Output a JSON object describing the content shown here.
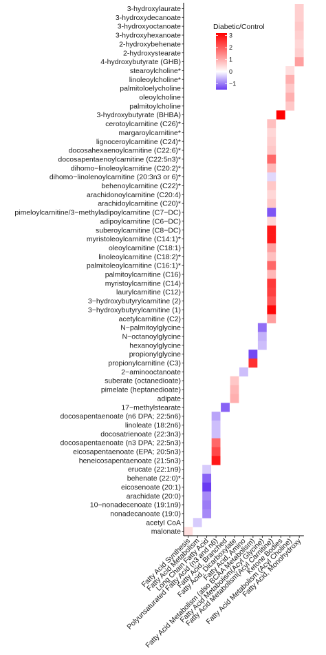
{
  "chart_data": {
    "type": "heatmap",
    "title": "",
    "xlabel": "",
    "ylabel": "",
    "legend": {
      "title": "Diabetic/Control",
      "placement": "top-right",
      "ticks": [
        3,
        2,
        1,
        0,
        -1
      ],
      "range": [
        -1.5,
        3.2
      ]
    },
    "columns": [
      "Fatty Acid Synthesis",
      "Fatty Acid Metabolism",
      "Long Chain Fatty Acid",
      "Polyunsaturated Fatty Acid (n3 and n6)",
      "Fatty Acid, Branched",
      "Fatty Acid, Dicarboxylate",
      "Fatty Acid, Amino",
      "Fatty Acid Metabolism (also BCAA Metabolism)",
      "Fatty Acid Metabolism(Acyl Glycine)",
      "Fatty Acid Metabolism(Acyl Carnitine)",
      "Ketone Bodies",
      "Fatty Acid Metabolism (Acyl Choline)",
      "Fatty Acid, Monohydroxy"
    ],
    "rows": [
      {
        "name": "3-hydroxylaurate",
        "col": 12,
        "value": 0.6
      },
      {
        "name": "3-hydroxydecanoate",
        "col": 12,
        "value": 0.6
      },
      {
        "name": "3-hydroxyoctanoate",
        "col": 12,
        "value": 0.7
      },
      {
        "name": "3-hydroxyhexanoate",
        "col": 12,
        "value": 0.6
      },
      {
        "name": "2-hydroxybehenate",
        "col": 12,
        "value": 0.5
      },
      {
        "name": "2-hydroxystearate",
        "col": 12,
        "value": 0.6
      },
      {
        "name": "4-hydroxybutyrate (GHB)",
        "col": 12,
        "value": 1.2
      },
      {
        "name": "stearoylcholine*",
        "col": 11,
        "value": 0.4
      },
      {
        "name": "linoleoylcholine*",
        "col": 11,
        "value": 1.0
      },
      {
        "name": "palmitoloelycholine",
        "col": 11,
        "value": 0.7
      },
      {
        "name": "oleoylcholine",
        "col": 11,
        "value": 1.0
      },
      {
        "name": "palmitoylcholine",
        "col": 11,
        "value": 0.7
      },
      {
        "name": "3-hydroxybutyrate (BHBA)",
        "col": 10,
        "value": 3.2
      },
      {
        "name": "cerotoylcarnitine (C26)*",
        "col": 9,
        "value": 0.8
      },
      {
        "name": "margaroylcarnitine*",
        "col": 9,
        "value": 0.5
      },
      {
        "name": "lignoceroylcarnitine (C24)*",
        "col": 9,
        "value": 0.6
      },
      {
        "name": "docosahexaenoylcarnitine (C22:6)*",
        "col": 9,
        "value": 0.7
      },
      {
        "name": "docosapentaenoylcarnitine (C22:5n3)*",
        "col": 9,
        "value": 1.9
      },
      {
        "name": "dihomo−linoleoylcarnitine (C20:2)*",
        "col": 9,
        "value": 0.9
      },
      {
        "name": "dihomo−linolenoylcarnitine (20:3n3 or 6)*",
        "col": 9,
        "value": -0.3
      },
      {
        "name": "behenoylcarnitine (C22)*",
        "col": 9,
        "value": 0.7
      },
      {
        "name": "arachidonoylcarnitine (C20:4)",
        "col": 9,
        "value": 0.5
      },
      {
        "name": "arachidoylcarnitine (C20)*",
        "col": 9,
        "value": 0.7
      },
      {
        "name": "pimeloylcarnitine/3−methyladipoylcarnitine (C7−DC)",
        "col": 9,
        "value": -1.3
      },
      {
        "name": "adipoylcarnitine (C6−DC)",
        "col": 9,
        "value": 0.5
      },
      {
        "name": "suberoylcarnitine (C8−DC)",
        "col": 9,
        "value": 2.9
      },
      {
        "name": "myristoleoylcarnitine (C14:1)*",
        "col": 9,
        "value": 2.9
      },
      {
        "name": "oleoylcarnitine (C18:1)",
        "col": 9,
        "value": 1.2
      },
      {
        "name": "linoleoylcarnitine (C18:2)*",
        "col": 9,
        "value": 0.8
      },
      {
        "name": "palmitoleoylcarnitine (C16:1)*",
        "col": 9,
        "value": 1.9
      },
      {
        "name": "palmitoylcarnitine (C16)",
        "col": 9,
        "value": 0.9
      },
      {
        "name": "myristoylcarnitine (C14)",
        "col": 9,
        "value": 2.5
      },
      {
        "name": "laurylcarnitine (C12)",
        "col": 9,
        "value": 2.4
      },
      {
        "name": "3−hydroxybutyrylcarnitine (2)",
        "col": 9,
        "value": 2.1
      },
      {
        "name": "3−hydroxybutyrylcarnitine (1)",
        "col": 9,
        "value": 3.1
      },
      {
        "name": "acetylcarnitine (C2)",
        "col": 9,
        "value": 1.2
      },
      {
        "name": "N−palmitoylglycine",
        "col": 8,
        "value": -1.1
      },
      {
        "name": "N−octanoylglycine",
        "col": 8,
        "value": -0.6
      },
      {
        "name": "hexanoylglycine",
        "col": 8,
        "value": -0.5
      },
      {
        "name": "propionylglycine",
        "col": 7,
        "value": -1.4
      },
      {
        "name": "propionylcarnitine (C3)",
        "col": 7,
        "value": 2.6
      },
      {
        "name": "2−aminooctanoate",
        "col": 6,
        "value": -0.5
      },
      {
        "name": "suberate (octanedioate)",
        "col": 5,
        "value": 0.7
      },
      {
        "name": "pimelate (heptanedioate)",
        "col": 5,
        "value": 0.9
      },
      {
        "name": "adipate",
        "col": 5,
        "value": 1.0
      },
      {
        "name": "17−methylstearate",
        "col": 4,
        "value": -1.2
      },
      {
        "name": "docosapentaenoate (n6 DPA; 22:5n6)",
        "col": 3,
        "value": -0.7
      },
      {
        "name": "linoleate (18:2n6)",
        "col": 3,
        "value": -0.5
      },
      {
        "name": "docosatrienoate (22:3n3)",
        "col": 3,
        "value": -0.5
      },
      {
        "name": "docosapentaenoate (n3 DPA; 22:5n3)",
        "col": 3,
        "value": 1.9
      },
      {
        "name": "eicosapentaenoate (EPA; 20:5n3)",
        "col": 3,
        "value": 2.3
      },
      {
        "name": "heneicosapentaenoate (21:5n3)",
        "col": 3,
        "value": 2.9
      },
      {
        "name": "erucate (22:1n9)",
        "col": 2,
        "value": -0.4
      },
      {
        "name": "behenate (22:0)*",
        "col": 2,
        "value": -1.2
      },
      {
        "name": "eicosenoate (20:1)",
        "col": 2,
        "value": -1.5
      },
      {
        "name": "arachidate (20:0)",
        "col": 2,
        "value": -0.9
      },
      {
        "name": "10−nonadecenoate (19:1n9)",
        "col": 2,
        "value": -1.0
      },
      {
        "name": "nonadecanoate (19:0)",
        "col": 2,
        "value": -0.9
      },
      {
        "name": "acetyl CoA",
        "col": 1,
        "value": -0.4
      },
      {
        "name": "malonate",
        "col": 0,
        "value": 0.4
      }
    ],
    "colors": {
      "low": "#6a3bf2",
      "mid": "#ffffff",
      "high": "#ff0000",
      "axis": "#000000"
    }
  }
}
